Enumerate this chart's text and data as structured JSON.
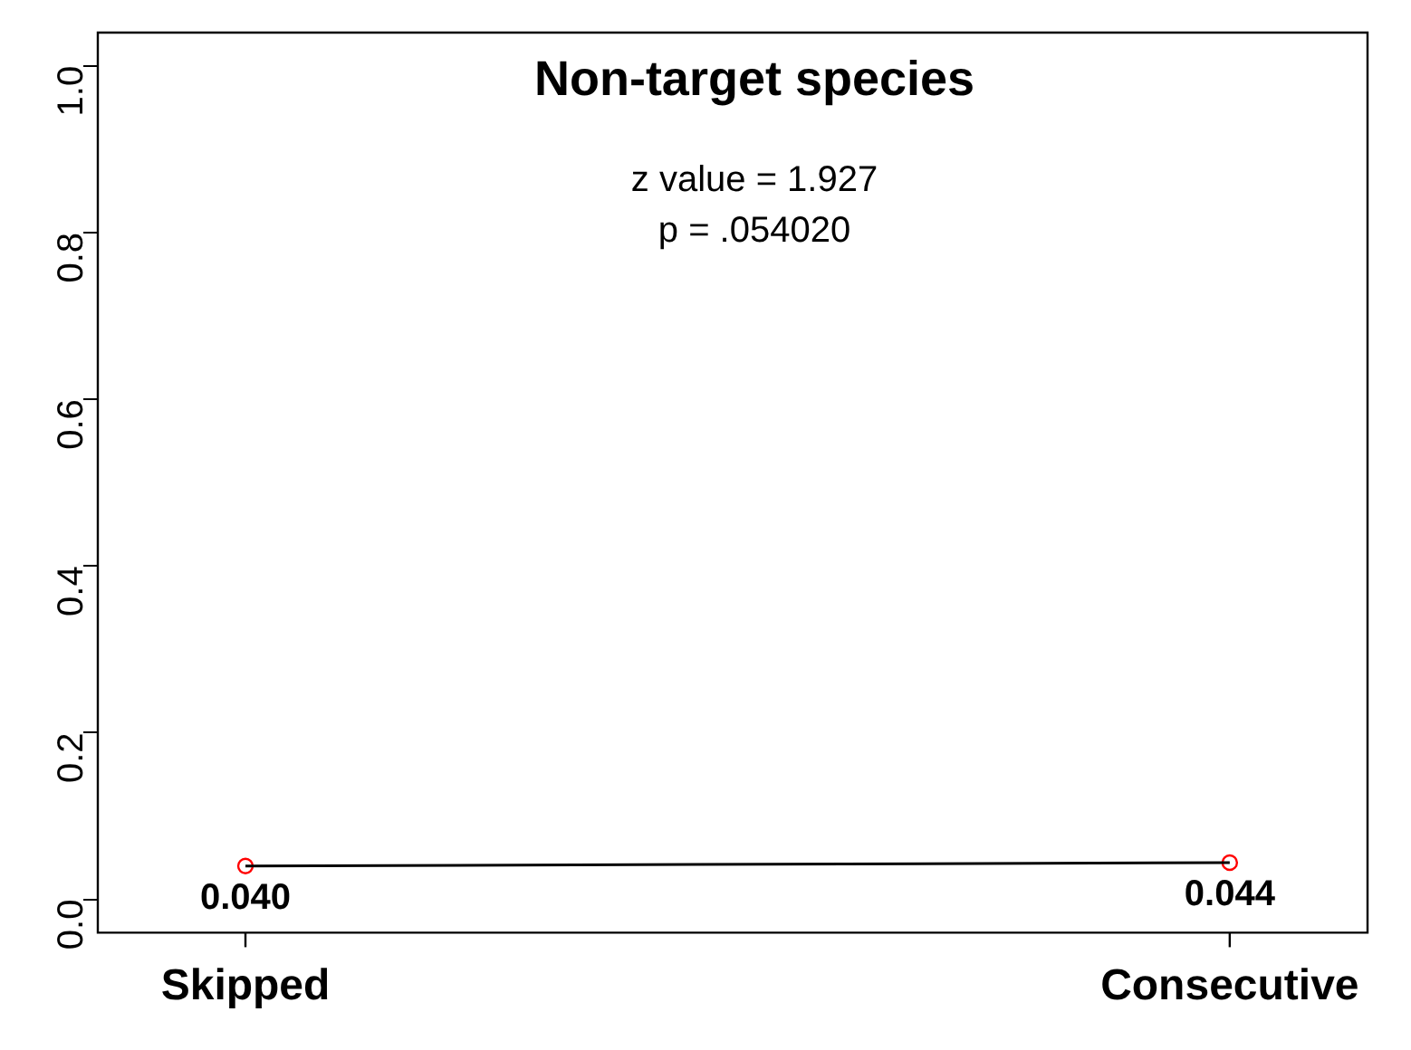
{
  "chart_data": {
    "type": "line",
    "title": "Non-target species",
    "annotations": [
      "z value = 1.927",
      "p = .054020"
    ],
    "categories": [
      "Skipped",
      "Consecutive"
    ],
    "series": [
      {
        "color": "#000000",
        "marker": "none",
        "values": [
          0.04,
          0.044
        ]
      },
      {
        "type": "scatter",
        "color": "#ff0000",
        "values": [
          0.04,
          0.044
        ],
        "value_labels": [
          "0.040",
          "0.044"
        ]
      }
    ],
    "ylim": [
      -0.04,
      1.04
    ],
    "yticks": [
      {
        "value": 0,
        "label": "0.0"
      },
      {
        "value": 0.2,
        "label": "0.2"
      },
      {
        "value": 0.4,
        "label": "0.4"
      },
      {
        "value": 0.6,
        "label": "0.6"
      },
      {
        "value": 0.8,
        "label": "0.8"
      },
      {
        "value": 1,
        "label": "1.0"
      }
    ],
    "marker": "circle",
    "grid": false,
    "legend": false
  }
}
